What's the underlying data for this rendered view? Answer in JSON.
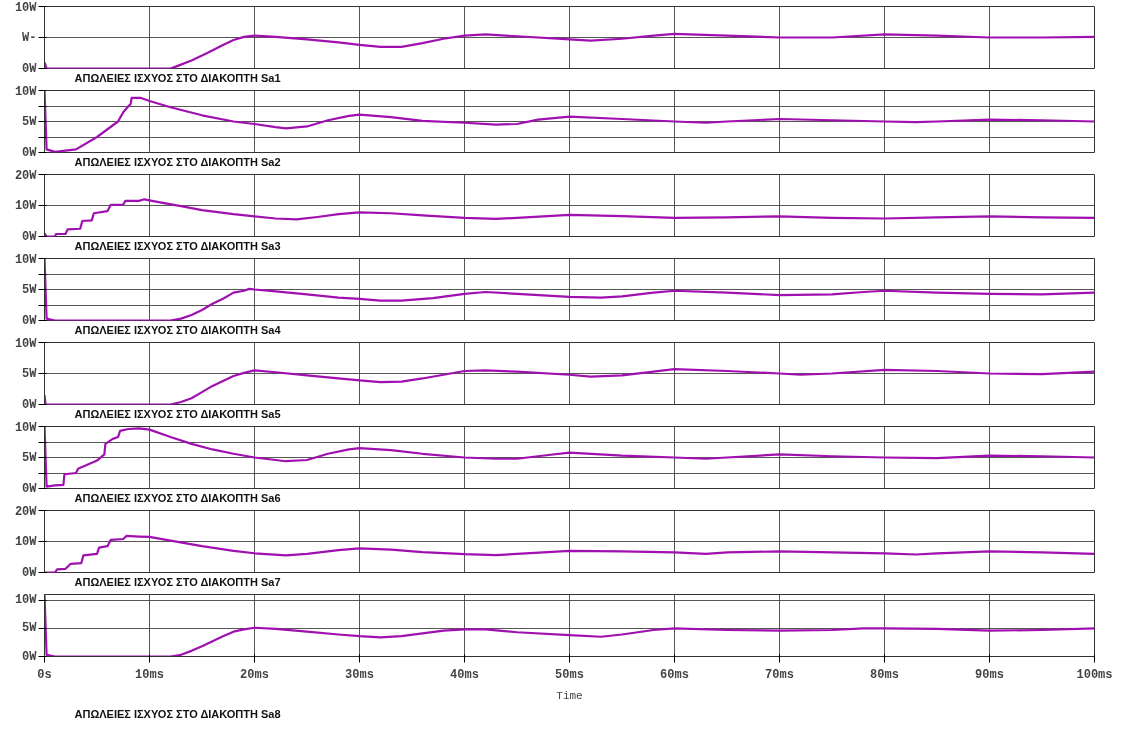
{
  "chart_data": [
    {
      "type": "line",
      "xlim": [
        0,
        100
      ],
      "xticks": [
        0,
        10,
        20,
        30,
        40,
        50,
        60,
        70,
        80,
        90,
        100
      ],
      "ylim": [
        0,
        10
      ],
      "yticks": [
        {
          "value": 0,
          "label": "0W"
        },
        {
          "value": 5,
          "label": "W-"
        },
        {
          "value": 10,
          "label": "10W"
        }
      ],
      "grid": true,
      "legend": "bottom",
      "tick_labels": "y",
      "series": [
        {
          "name": "ΑΠΩΛΕΙΕΣ ΙΣΧΥΟΣ ΣΤΟ ΔΙΑΚΟΠΤΗ Sa1",
          "color": "#a010b0",
          "x": [
            0,
            0.2,
            12,
            12.5,
            14,
            15.5,
            17,
            18,
            19,
            20,
            22,
            25,
            28,
            30,
            32,
            34,
            36,
            38,
            40,
            42,
            45,
            50,
            52,
            55,
            58,
            60,
            65,
            70,
            75,
            80,
            85,
            90,
            95,
            100
          ],
          "values": [
            1,
            0,
            0,
            0.3,
            1.3,
            2.5,
            3.8,
            4.6,
            5.1,
            5.3,
            5.1,
            4.7,
            4.2,
            3.8,
            3.5,
            3.5,
            4.1,
            4.8,
            5.3,
            5.5,
            5.2,
            4.7,
            4.5,
            4.8,
            5.3,
            5.6,
            5.3,
            5.0,
            5.0,
            5.5,
            5.3,
            5.0,
            5.0,
            5.1
          ]
        }
      ]
    },
    {
      "type": "line",
      "xlim": [
        0,
        100
      ],
      "xticks": [
        0,
        10,
        20,
        30,
        40,
        50,
        60,
        70,
        80,
        90,
        100
      ],
      "ylim": [
        0,
        10
      ],
      "yticks": [
        {
          "value": 0,
          "label": "0W"
        },
        {
          "value": 2.5,
          "label": null
        },
        {
          "value": 5,
          "label": "5W"
        },
        {
          "value": 7.5,
          "label": null
        },
        {
          "value": 10,
          "label": "10W"
        }
      ],
      "grid": true,
      "legend": "bottom",
      "tick_labels": "y",
      "series": [
        {
          "name": "ΑΠΩΛΕΙΕΣ ΙΣΧΥΟΣ ΣΤΟ ΔΙΑΚΟΠΤΗ Sa2",
          "color": "#a010b0",
          "x": [
            0,
            0.2,
            1,
            3,
            5,
            7,
            7.5,
            8,
            8.2,
            8.3,
            9.2,
            10,
            12,
            15,
            18,
            20,
            22,
            23,
            25,
            27,
            29,
            30,
            33,
            36,
            40,
            43,
            45,
            47,
            50,
            55,
            60,
            63,
            65,
            70,
            75,
            80,
            83,
            85,
            90,
            95,
            100
          ],
          "values": [
            10,
            0.5,
            0.1,
            0.5,
            2.5,
            5.0,
            6.5,
            7.5,
            7.8,
            8.8,
            8.8,
            8.3,
            7.3,
            6.0,
            5.0,
            4.6,
            4.1,
            3.9,
            4.2,
            5.2,
            5.9,
            6.1,
            5.7,
            5.1,
            4.8,
            4.5,
            4.6,
            5.3,
            5.8,
            5.4,
            5.0,
            4.8,
            5.0,
            5.4,
            5.2,
            5.0,
            4.9,
            5.0,
            5.3,
            5.2,
            5.0
          ]
        }
      ]
    },
    {
      "type": "line",
      "xlim": [
        0,
        100
      ],
      "xticks": [
        0,
        10,
        20,
        30,
        40,
        50,
        60,
        70,
        80,
        90,
        100
      ],
      "ylim": [
        0,
        20
      ],
      "yticks": [
        {
          "value": 0,
          "label": "0W"
        },
        {
          "value": 10,
          "label": "10W"
        },
        {
          "value": 20,
          "label": "20W"
        }
      ],
      "grid": true,
      "legend": "bottom",
      "tick_labels": "y",
      "series": [
        {
          "name": "ΑΠΩΛΕΙΕΣ ΙΣΧΥΟΣ ΣΤΟ ΔΙΑΚΟΠΤΗ Sa3",
          "color": "#a010b0",
          "x": [
            0,
            0.2,
            1,
            1.1,
            2,
            2.2,
            3.4,
            3.6,
            4.5,
            4.7,
            6,
            6.3,
            7.5,
            7.7,
            9,
            9.5,
            11,
            13,
            15,
            18,
            20,
            22,
            24,
            26,
            28,
            30,
            33,
            36,
            40,
            43,
            45,
            50,
            55,
            60,
            65,
            70,
            75,
            80,
            85,
            90,
            95,
            100
          ],
          "values": [
            1,
            0,
            0,
            0.8,
            0.8,
            2.3,
            2.5,
            5,
            5.2,
            7.5,
            8.2,
            10.2,
            10.3,
            11.5,
            11.5,
            12,
            11,
            9.8,
            8.5,
            7.2,
            6.5,
            5.8,
            5.5,
            6.3,
            7.2,
            7.8,
            7.5,
            6.8,
            6.0,
            5.7,
            6.0,
            7.0,
            6.6,
            6.0,
            6.2,
            6.5,
            6.0,
            5.8,
            6.2,
            6.5,
            6.2,
            6.0
          ]
        }
      ]
    },
    {
      "type": "line",
      "xlim": [
        0,
        100
      ],
      "xticks": [
        0,
        10,
        20,
        30,
        40,
        50,
        60,
        70,
        80,
        90,
        100
      ],
      "ylim": [
        0,
        10
      ],
      "yticks": [
        {
          "value": 0,
          "label": "0W"
        },
        {
          "value": 2.5,
          "label": null
        },
        {
          "value": 5,
          "label": "5W"
        },
        {
          "value": 7.5,
          "label": null
        },
        {
          "value": 10,
          "label": "10W"
        }
      ],
      "grid": true,
      "legend": "bottom",
      "tick_labels": "y",
      "series": [
        {
          "name": "ΑΠΩΛΕΙΕΣ ΙΣΧΥΟΣ ΣΤΟ ΔΙΑΚΟΠΤΗ Sa4",
          "color": "#a010b0",
          "x": [
            0,
            0.2,
            1,
            12,
            13,
            14,
            15,
            16,
            17,
            18,
            19,
            19.5,
            20,
            22,
            25,
            28,
            30,
            32,
            34,
            37,
            40,
            42,
            45,
            50,
            53,
            55,
            58,
            60,
            65,
            70,
            75,
            78,
            80,
            85,
            90,
            95,
            100
          ],
          "values": [
            10,
            0.3,
            0,
            0,
            0.3,
            0.9,
            1.7,
            2.7,
            3.5,
            4.5,
            4.8,
            5.1,
            5.0,
            4.7,
            4.2,
            3.7,
            3.5,
            3.2,
            3.2,
            3.6,
            4.3,
            4.6,
            4.3,
            3.8,
            3.7,
            3.9,
            4.5,
            4.8,
            4.5,
            4.1,
            4.2,
            4.6,
            4.8,
            4.5,
            4.3,
            4.2,
            4.5
          ]
        }
      ]
    },
    {
      "type": "line",
      "xlim": [
        0,
        100
      ],
      "xticks": [
        0,
        10,
        20,
        30,
        40,
        50,
        60,
        70,
        80,
        90,
        100
      ],
      "ylim": [
        0,
        10
      ],
      "yticks": [
        {
          "value": 0,
          "label": "0W"
        },
        {
          "value": 5,
          "label": "5W"
        },
        {
          "value": 10,
          "label": "10W"
        }
      ],
      "grid": true,
      "legend": "bottom",
      "tick_labels": "y",
      "series": [
        {
          "name": "ΑΠΩΛΕΙΕΣ ΙΣΧΥΟΣ ΣΤΟ ΔΙΑΚΟΠΤΗ Sa5",
          "color": "#a010b0",
          "x": [
            0,
            0.1,
            12,
            13,
            14,
            15,
            16,
            17,
            18,
            19,
            20,
            22,
            25,
            28,
            30,
            32,
            34,
            36,
            38,
            40,
            42,
            45,
            50,
            52,
            55,
            58,
            60,
            65,
            70,
            72,
            75,
            80,
            85,
            90,
            95,
            100
          ],
          "values": [
            1.5,
            0,
            0,
            0.4,
            1.0,
            2.0,
            3.0,
            3.8,
            4.6,
            5.1,
            5.5,
            5.2,
            4.7,
            4.2,
            3.9,
            3.6,
            3.7,
            4.2,
            4.8,
            5.4,
            5.5,
            5.3,
            4.8,
            4.5,
            4.7,
            5.3,
            5.7,
            5.4,
            5.0,
            4.8,
            5.0,
            5.6,
            5.4,
            5.0,
            4.9,
            5.3
          ]
        }
      ]
    },
    {
      "type": "line",
      "xlim": [
        0,
        100
      ],
      "xticks": [
        0,
        10,
        20,
        30,
        40,
        50,
        60,
        70,
        80,
        90,
        100
      ],
      "ylim": [
        0,
        10
      ],
      "yticks": [
        {
          "value": 0,
          "label": "0W"
        },
        {
          "value": 2.5,
          "label": null
        },
        {
          "value": 5,
          "label": "5W"
        },
        {
          "value": 7.5,
          "label": null
        },
        {
          "value": 10,
          "label": "10W"
        }
      ],
      "grid": true,
      "legend": "bottom",
      "tick_labels": "y",
      "series": [
        {
          "name": "ΑΠΩΛΕΙΕΣ ΙΣΧΥΟΣ ΣΤΟ ΔΙΑΚΟΠΤΗ Sa6",
          "color": "#a010b0",
          "x": [
            0,
            0.2,
            1,
            1.8,
            1.9,
            3,
            3.2,
            5,
            5.7,
            5.8,
            6.5,
            7,
            7.2,
            8,
            9,
            10,
            12,
            14,
            16,
            18,
            20,
            22,
            23,
            25,
            27,
            29,
            30,
            33,
            36,
            40,
            43,
            45,
            48,
            50,
            55,
            60,
            63,
            65,
            70,
            75,
            80,
            85,
            90,
            95,
            100
          ],
          "values": [
            10,
            0.3,
            0.5,
            0.6,
            2.3,
            2.5,
            3.2,
            4.5,
            5.5,
            7.2,
            8.0,
            8.3,
            9.3,
            9.6,
            9.7,
            9.5,
            8.3,
            7.2,
            6.3,
            5.6,
            5.0,
            4.6,
            4.4,
            4.6,
            5.6,
            6.3,
            6.5,
            6.2,
            5.6,
            5.0,
            4.8,
            4.8,
            5.4,
            5.8,
            5.3,
            5.0,
            4.8,
            5.0,
            5.5,
            5.2,
            5.0,
            4.9,
            5.3,
            5.2,
            5.0
          ]
        }
      ]
    },
    {
      "type": "line",
      "xlim": [
        0,
        100
      ],
      "xticks": [
        0,
        10,
        20,
        30,
        40,
        50,
        60,
        70,
        80,
        90,
        100
      ],
      "ylim": [
        0,
        20
      ],
      "yticks": [
        {
          "value": 0,
          "label": "0W"
        },
        {
          "value": 10,
          "label": "10W"
        },
        {
          "value": 20,
          "label": "20W"
        }
      ],
      "grid": true,
      "legend": "bottom",
      "tick_labels": "y",
      "series": [
        {
          "name": "ΑΠΩΛΕΙΕΣ ΙΣΧΥΟΣ ΣΤΟ ΔΙΑΚΟΠΤΗ Sa7",
          "color": "#a010b0",
          "x": [
            0,
            1,
            1.2,
            2,
            2.5,
            3.5,
            3.7,
            5,
            5.2,
            6,
            6.3,
            7.5,
            7.8,
            9,
            10,
            12,
            15,
            18,
            20,
            23,
            25,
            28,
            30,
            33,
            36,
            40,
            43,
            45,
            50,
            55,
            60,
            63,
            65,
            70,
            75,
            80,
            83,
            85,
            90,
            95,
            100
          ],
          "values": [
            0,
            0,
            1,
            1.2,
            2.8,
            3,
            5.5,
            6.0,
            8,
            8.5,
            10.5,
            10.8,
            11.8,
            11.6,
            11.5,
            10.3,
            8.5,
            7.0,
            6.2,
            5.5,
            6.0,
            7.2,
            7.8,
            7.4,
            6.6,
            5.9,
            5.6,
            6.0,
            7.0,
            6.8,
            6.5,
            6.0,
            6.5,
            6.8,
            6.5,
            6.2,
            5.8,
            6.2,
            6.8,
            6.5,
            6.0
          ]
        }
      ]
    },
    {
      "type": "line",
      "xlim": [
        0,
        100
      ],
      "xticks": [
        {
          "value": 0,
          "label": "0s"
        },
        {
          "value": 10,
          "label": "10ms"
        },
        {
          "value": 20,
          "label": "20ms"
        },
        {
          "value": 30,
          "label": "30ms"
        },
        {
          "value": 40,
          "label": "40ms"
        },
        {
          "value": 50,
          "label": "50ms"
        },
        {
          "value": 60,
          "label": "60ms"
        },
        {
          "value": 70,
          "label": "70ms"
        },
        {
          "value": 80,
          "label": "80ms"
        },
        {
          "value": 90,
          "label": "90ms"
        },
        {
          "value": 100,
          "label": "100ms"
        }
      ],
      "ylim": [
        0,
        11
      ],
      "yticks": [
        {
          "value": 0,
          "label": "0W"
        },
        {
          "value": 5,
          "label": "5W"
        },
        {
          "value": 10,
          "label": "10W"
        }
      ],
      "grid": true,
      "legend": "bottom",
      "xlabel": "Time",
      "series": [
        {
          "name": "ΑΠΩΛΕΙΕΣ ΙΣΧΥΟΣ ΣΤΟ ΔΙΑΚΟΠΤΗ Sa8",
          "color": "#a010b0",
          "x": [
            0,
            0.2,
            1,
            12,
            13,
            14,
            15,
            16,
            17,
            18,
            19,
            20,
            22,
            25,
            28,
            30,
            32,
            34,
            36,
            38,
            40,
            42,
            45,
            50,
            53,
            55,
            58,
            60,
            65,
            70,
            75,
            78,
            80,
            85,
            90,
            95,
            100
          ],
          "values": [
            11,
            0.3,
            0,
            0,
            0.3,
            1.0,
            1.8,
            2.7,
            3.6,
            4.4,
            4.8,
            5.1,
            4.9,
            4.4,
            3.9,
            3.6,
            3.4,
            3.6,
            4.1,
            4.6,
            4.8,
            4.8,
            4.3,
            3.8,
            3.5,
            3.9,
            4.7,
            5.0,
            4.7,
            4.6,
            4.7,
            5.0,
            5.0,
            4.9,
            4.6,
            4.7,
            5.0
          ]
        }
      ]
    }
  ]
}
